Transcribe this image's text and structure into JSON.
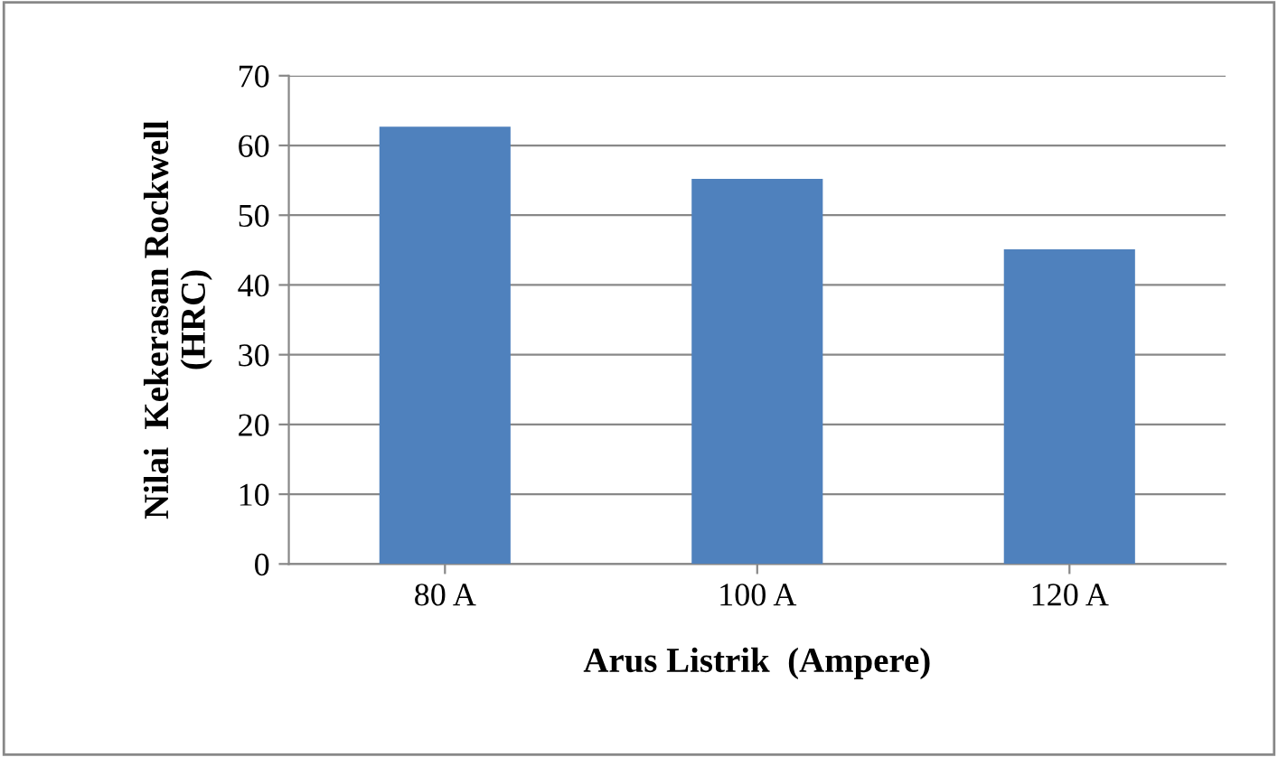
{
  "chart_data": {
    "type": "bar",
    "categories": [
      "80 A",
      "100 A",
      "120 A"
    ],
    "values": [
      62.7,
      55.2,
      45.1
    ],
    "color": "#4f81bd",
    "xlabel": "Arus Listrik  (Ampere)",
    "ylabel": "Nilai  Kekerasan Rockwell\n(HRC)",
    "ylim": [
      0,
      70
    ],
    "yticks": [
      0,
      10,
      20,
      30,
      40,
      50,
      60,
      70
    ],
    "grid": "y",
    "legend": false
  }
}
